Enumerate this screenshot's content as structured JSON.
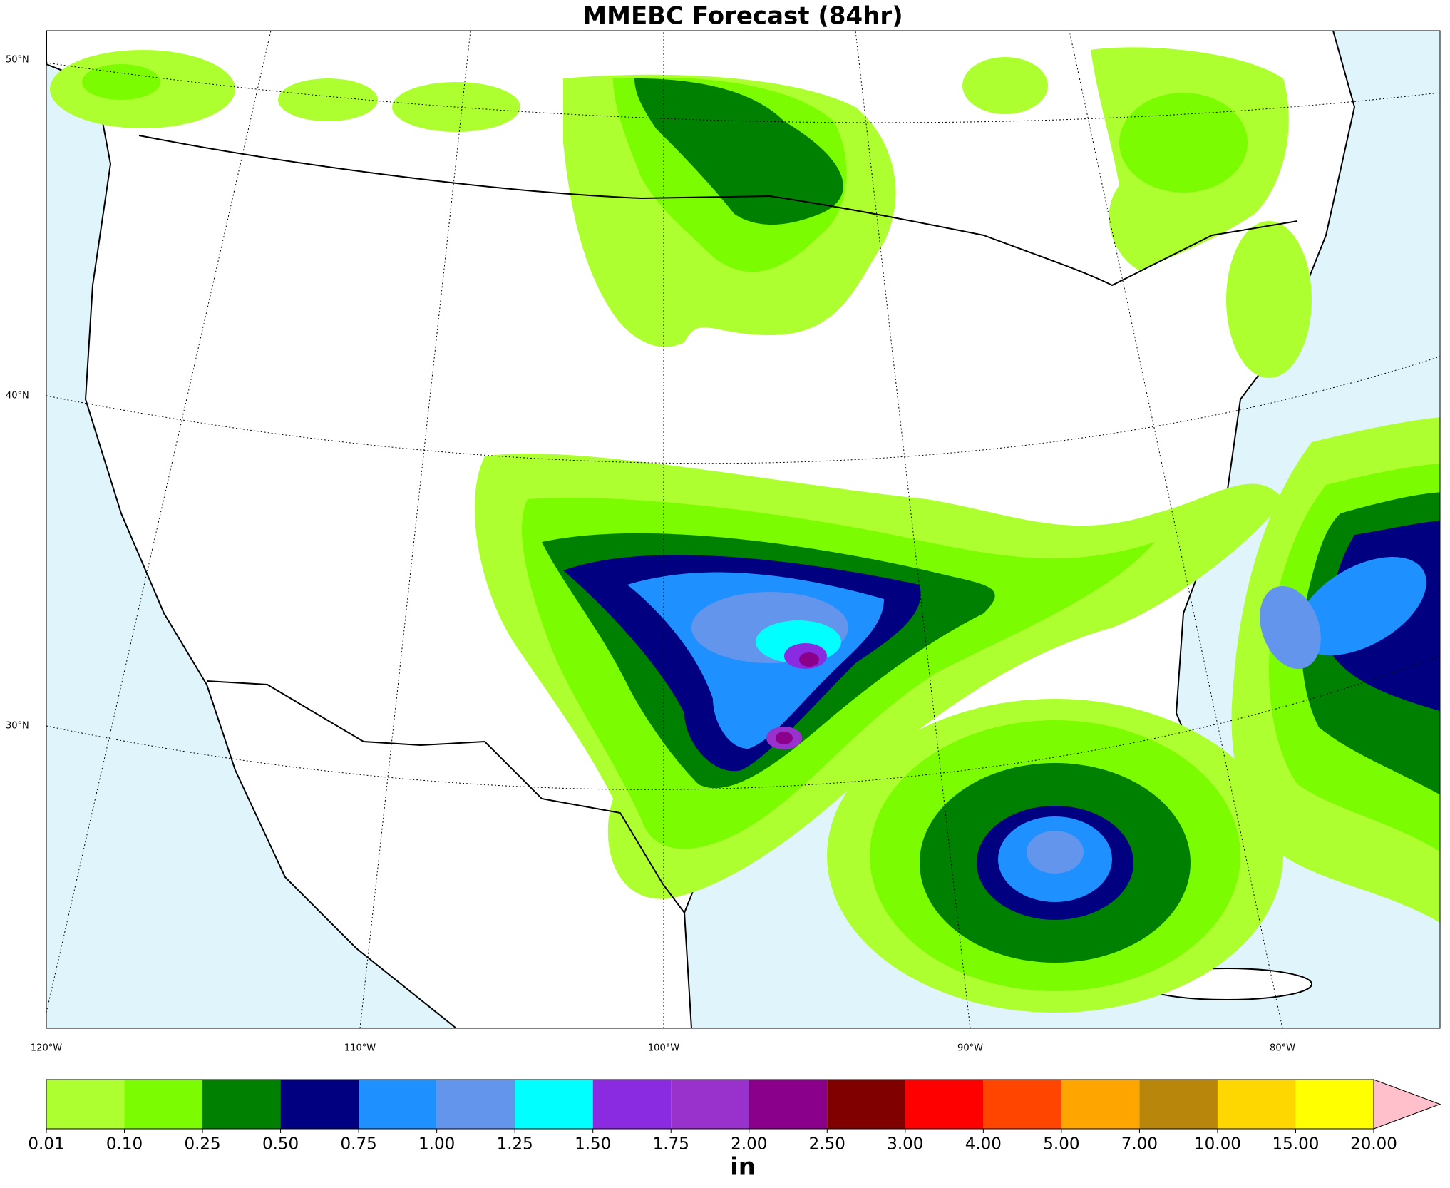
{
  "chart_data": {
    "type": "map",
    "title": "MMEBC Forecast (84hr)",
    "lat_labels": [
      "50°N",
      "40°N",
      "30°N"
    ],
    "lon_labels": [
      "120°W",
      "110°W",
      "100°W",
      "90°W",
      "80°W"
    ],
    "colorbar": {
      "label": "in",
      "ticks": [
        0.01,
        {
          "value": 0.1,
          "label": "0.10"
        },
        0.25,
        {
          "value": 0.5,
          "label": "0.50"
        },
        0.75,
        {
          "value": 1,
          "label": "1.00"
        },
        1.25,
        {
          "value": 1.5,
          "label": "1.50"
        },
        1.75,
        {
          "value": 2,
          "label": "2.00"
        },
        {
          "value": 2.5,
          "label": "2.50"
        },
        {
          "value": 3,
          "label": "3.00"
        },
        {
          "value": 4,
          "label": "4.00"
        },
        {
          "value": 5,
          "label": "5.00"
        },
        {
          "value": 7,
          "label": "7.00"
        },
        {
          "value": 10,
          "label": "10.00"
        },
        {
          "value": 15,
          "label": "15.00"
        },
        {
          "value": 20,
          "label": "20.00"
        }
      ],
      "colors": [
        "#adff2f",
        "#7cfc00",
        "#008000",
        "#000080",
        "#1e90ff",
        "#6495ed",
        "#00ffff",
        "#8a2be2",
        "#9932cc",
        "#8b008b",
        "#800000",
        "#ff0000",
        "#ff4500",
        "#ffa500",
        "#b8860b",
        "#ffd700",
        "#ffff00"
      ],
      "extend_color": "#ffc0cb"
    }
  }
}
